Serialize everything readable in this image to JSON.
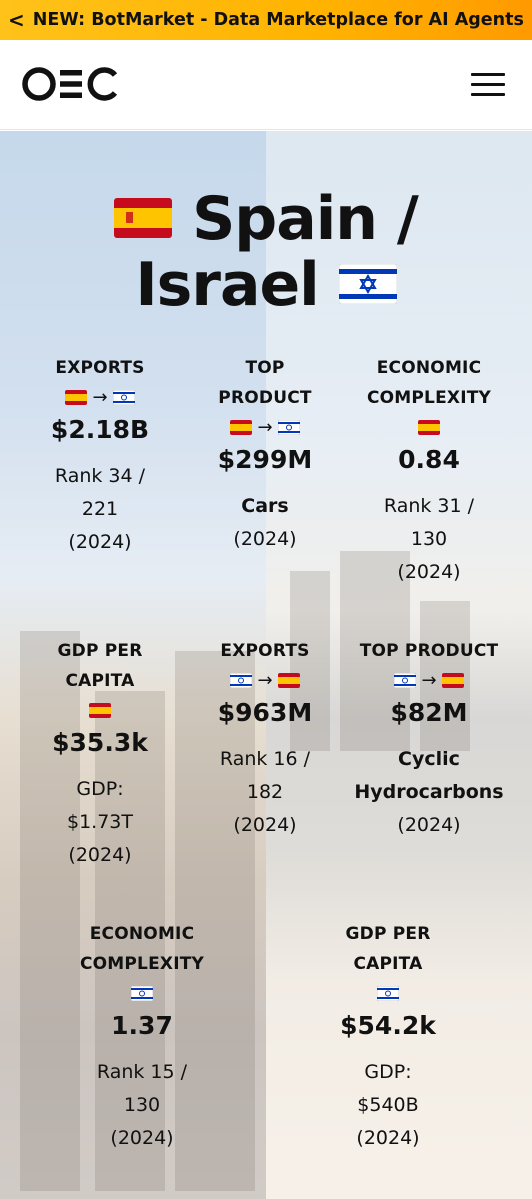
{
  "banner": {
    "chevron": "<",
    "text": "NEW: BotMarket - Data Marketplace for AI Agents"
  },
  "header": {
    "logo": "OEC",
    "menu_icon": "hamburger-menu-icon"
  },
  "title": {
    "line1": "Spain /",
    "line2": "Israel"
  },
  "arrow": "→",
  "stats": {
    "s1": {
      "label1": "EXPORTS",
      "value": "$2.18B",
      "sub1": "Rank 34 /",
      "sub2": "221",
      "sub3": "(2024)"
    },
    "s2": {
      "label1": "TOP",
      "label2": "PRODUCT",
      "value": "$299M",
      "sub1": "Cars",
      "sub2": "(2024)"
    },
    "s3": {
      "label1": "ECONOMIC",
      "label2": "COMPLEXITY",
      "value": "0.84",
      "sub1": "Rank 31 /",
      "sub2": "130",
      "sub3": "(2024)"
    },
    "s4": {
      "label1": "GDP PER",
      "label2": "CAPITA",
      "value": "$35.3k",
      "sub1": "GDP:",
      "sub2": "$1.73T",
      "sub3": "(2024)"
    },
    "s5": {
      "label1": "EXPORTS",
      "value": "$963M",
      "sub1": "Rank 16 /",
      "sub2": "182",
      "sub3": "(2024)"
    },
    "s6": {
      "label1": "TOP PRODUCT",
      "value": "$82M",
      "sub1": "Cyclic",
      "sub2": "Hydrocarbons",
      "sub3": "(2024)"
    },
    "s7": {
      "label1": "ECONOMIC",
      "label2": "COMPLEXITY",
      "value": "1.37",
      "sub1": "Rank 15 /",
      "sub2": "130",
      "sub3": "(2024)"
    },
    "s8": {
      "label1": "GDP PER",
      "label2": "CAPITA",
      "value": "$54.2k",
      "sub1": "GDP:",
      "sub2": "$540B",
      "sub3": "(2024)"
    }
  },
  "colors": {
    "banner": "#ffb300",
    "spain_red": "#c60b1e",
    "spain_yellow": "#ffc400",
    "israel_blue": "#0038b8"
  }
}
